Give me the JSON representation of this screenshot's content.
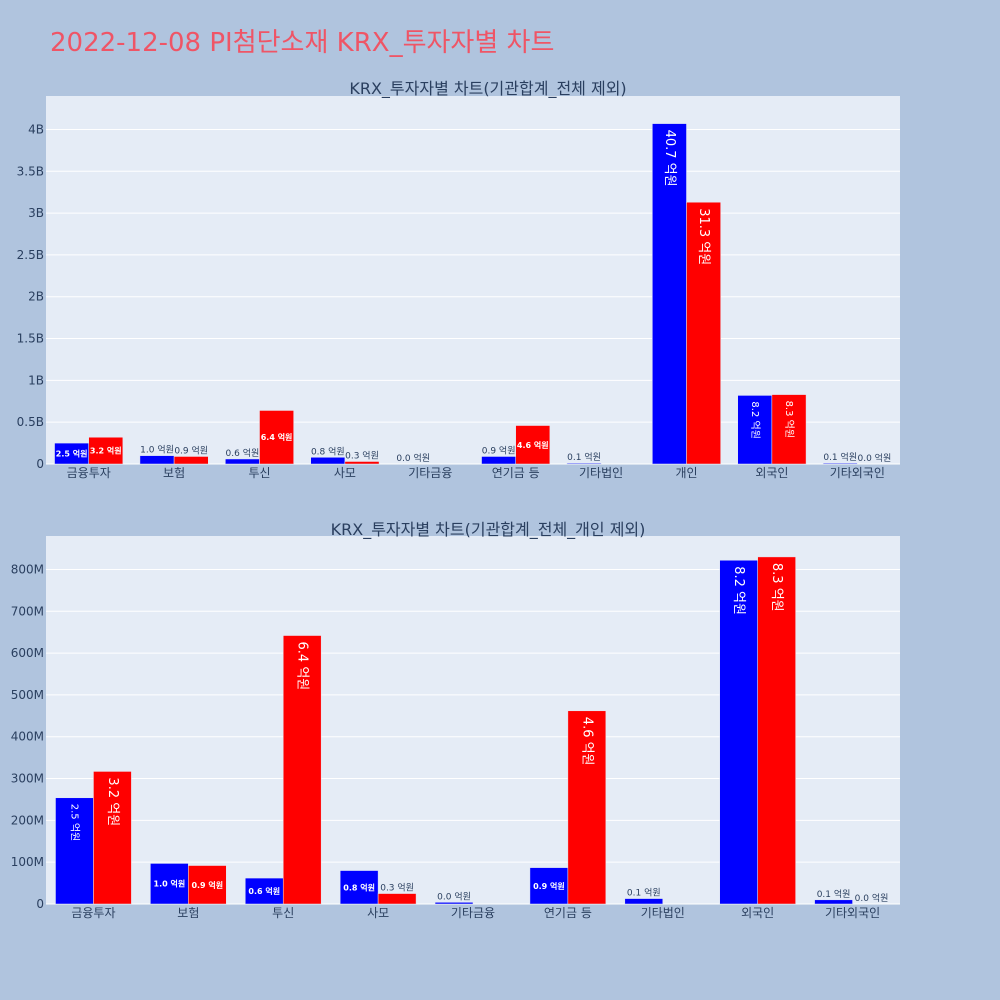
{
  "page": {
    "title": "2022-12-08 PI첨단소재 KRX_투자자별 차트"
  },
  "chart_data": [
    {
      "type": "bar",
      "title": "KRX_투자자별 차트(기관합계_전체 제외)",
      "categories": [
        "금융투자",
        "보험",
        "투신",
        "사모",
        "기타금융",
        "연기금 등",
        "기타법인",
        "개인",
        "외국인",
        "기타외국인"
      ],
      "ylim": [
        0,
        4400000000
      ],
      "ytick_values": [
        0,
        500000000,
        1000000000,
        1500000000,
        2000000000,
        2500000000,
        3000000000,
        3500000000,
        4000000000
      ],
      "ytick_labels": [
        "0",
        "0.5B",
        "1B",
        "1.5B",
        "2B",
        "2.5B",
        "3B",
        "3.5B",
        "4B"
      ],
      "grid": true,
      "series": [
        {
          "color": "#0000ff",
          "values": [
            250000000,
            100000000,
            60000000,
            80000000,
            0,
            90000000,
            10000000,
            4070000000,
            820000000,
            10000000
          ],
          "labels": [
            "2.5 억원",
            "1.0 억원",
            "0.6 억원",
            "0.8 억원",
            "0.0 억원",
            "0.9 억원",
            "0.1 억원",
            "40.7 억원",
            "8.2 억원",
            "0.1 억원"
          ]
        },
        {
          "color": "#ff0000",
          "values": [
            320000000,
            90000000,
            640000000,
            30000000,
            0,
            460000000,
            0,
            3130000000,
            830000000,
            0
          ],
          "labels": [
            "3.2 억원",
            "0.9 억원",
            "6.4 억원",
            "0.3 억원",
            "",
            "4.6 억원",
            "",
            "31.3 억원",
            "8.3 억원",
            "0.0 억원"
          ]
        }
      ]
    },
    {
      "type": "bar",
      "title": "KRX_투자자별 차트(기관합계_전체_개인 제외)",
      "categories": [
        "금융투자",
        "보험",
        "투신",
        "사모",
        "기타금융",
        "연기금 등",
        "기타법인",
        "외국인",
        "기타외국인"
      ],
      "ylim": [
        0,
        880000000
      ],
      "ytick_values": [
        0,
        100000000,
        200000000,
        300000000,
        400000000,
        500000000,
        600000000,
        700000000,
        800000000
      ],
      "ytick_labels": [
        "0",
        "100M",
        "200M",
        "300M",
        "400M",
        "500M",
        "600M",
        "700M",
        "800M"
      ],
      "grid": true,
      "series": [
        {
          "color": "#0000ff",
          "values": [
            254000000,
            97000000,
            62000000,
            80000000,
            4000000,
            87000000,
            13000000,
            822000000,
            10000000
          ],
          "labels": [
            "2.5 억원",
            "1.0 억원",
            "0.6 억원",
            "0.8 억원",
            "0.0 억원",
            "0.9 억원",
            "0.1 억원",
            "8.2 억원",
            "0.1 억원"
          ]
        },
        {
          "color": "#ff0000",
          "values": [
            317000000,
            92000000,
            642000000,
            25000000,
            0,
            462000000,
            0,
            830000000,
            0
          ],
          "labels": [
            "3.2 억원",
            "0.9 억원",
            "6.4 억원",
            "0.3 억원",
            "",
            "4.6 억원",
            "",
            "8.3 억원",
            "0.0 억원"
          ]
        }
      ]
    }
  ]
}
